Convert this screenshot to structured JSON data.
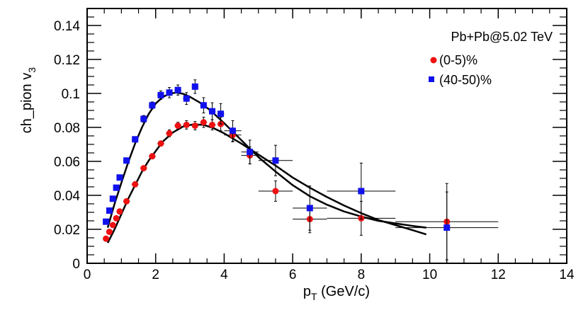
{
  "chart_data": {
    "type": "scatter",
    "title": "",
    "xlabel": "p",
    "xlabel_sub": "T",
    "xlabel_unit": "(GeV/c)",
    "ylabel": "ch_pion v",
    "ylabel_sub": "3",
    "xlim": [
      0,
      14
    ],
    "ylim": [
      0,
      0.15
    ],
    "x_ticks": [
      0,
      2,
      4,
      6,
      8,
      10,
      12,
      14
    ],
    "x_tick_labels": [
      "0",
      "2",
      "4",
      "6",
      "8",
      "10",
      "12",
      "14"
    ],
    "y_ticks": [
      0,
      0.02,
      0.04,
      0.06,
      0.08,
      0.1,
      0.12,
      0.14
    ],
    "y_tick_labels": [
      "0",
      "0.02",
      "0.04",
      "0.06",
      "0.08",
      "0.1",
      "0.12",
      "0.14"
    ],
    "grid": false,
    "legend": {
      "position": "top-right",
      "header": "Pb+Pb@5.02 TeV",
      "entries": [
        {
          "label": "(0-5)%",
          "marker": "circle",
          "color": "#ee1111"
        },
        {
          "label": "(40-50)%",
          "marker": "square",
          "color": "#1111ee"
        }
      ]
    },
    "series": [
      {
        "name": "(0-5)%",
        "marker": "circle",
        "color": "#ee1111",
        "points": [
          {
            "x": 0.55,
            "y": 0.0145,
            "xerr": 0.05,
            "yerr": 0.001
          },
          {
            "x": 0.65,
            "y": 0.0185,
            "xerr": 0.05,
            "yerr": 0.001
          },
          {
            "x": 0.75,
            "y": 0.0225,
            "xerr": 0.05,
            "yerr": 0.001
          },
          {
            "x": 0.85,
            "y": 0.0265,
            "xerr": 0.05,
            "yerr": 0.001
          },
          {
            "x": 0.95,
            "y": 0.0305,
            "xerr": 0.05,
            "yerr": 0.001
          },
          {
            "x": 1.15,
            "y": 0.0365,
            "xerr": 0.1,
            "yerr": 0.001
          },
          {
            "x": 1.4,
            "y": 0.0465,
            "xerr": 0.1,
            "yerr": 0.001
          },
          {
            "x": 1.65,
            "y": 0.056,
            "xerr": 0.1,
            "yerr": 0.001
          },
          {
            "x": 1.9,
            "y": 0.063,
            "xerr": 0.1,
            "yerr": 0.0015
          },
          {
            "x": 2.15,
            "y": 0.0705,
            "xerr": 0.1,
            "yerr": 0.0015
          },
          {
            "x": 2.4,
            "y": 0.0765,
            "xerr": 0.1,
            "yerr": 0.002
          },
          {
            "x": 2.65,
            "y": 0.081,
            "xerr": 0.1,
            "yerr": 0.002
          },
          {
            "x": 2.9,
            "y": 0.0815,
            "xerr": 0.1,
            "yerr": 0.0025
          },
          {
            "x": 3.15,
            "y": 0.081,
            "xerr": 0.1,
            "yerr": 0.0025
          },
          {
            "x": 3.4,
            "y": 0.083,
            "xerr": 0.1,
            "yerr": 0.003
          },
          {
            "x": 3.65,
            "y": 0.0815,
            "xerr": 0.1,
            "yerr": 0.003
          },
          {
            "x": 3.9,
            "y": 0.082,
            "xerr": 0.1,
            "yerr": 0.004
          },
          {
            "x": 4.25,
            "y": 0.0755,
            "xerr": 0.25,
            "yerr": 0.004
          },
          {
            "x": 4.75,
            "y": 0.0635,
            "xerr": 0.25,
            "yerr": 0.005
          },
          {
            "x": 5.5,
            "y": 0.0425,
            "xerr": 0.5,
            "yerr": 0.006
          },
          {
            "x": 6.5,
            "y": 0.026,
            "xerr": 0.5,
            "yerr": 0.008
          },
          {
            "x": 8.0,
            "y": 0.0265,
            "xerr": 1.0,
            "yerr": 0.01
          },
          {
            "x": 10.5,
            "y": 0.0245,
            "xerr": 1.5,
            "yerr": 0.0225
          }
        ]
      },
      {
        "name": "(40-50)%",
        "marker": "square",
        "color": "#1111ee",
        "points": [
          {
            "x": 0.55,
            "y": 0.0245,
            "xerr": 0.05,
            "yerr": 0.001
          },
          {
            "x": 0.65,
            "y": 0.031,
            "xerr": 0.05,
            "yerr": 0.001
          },
          {
            "x": 0.75,
            "y": 0.038,
            "xerr": 0.05,
            "yerr": 0.001
          },
          {
            "x": 0.85,
            "y": 0.0445,
            "xerr": 0.05,
            "yerr": 0.001
          },
          {
            "x": 0.95,
            "y": 0.0505,
            "xerr": 0.05,
            "yerr": 0.0012
          },
          {
            "x": 1.15,
            "y": 0.0605,
            "xerr": 0.1,
            "yerr": 0.0015
          },
          {
            "x": 1.4,
            "y": 0.073,
            "xerr": 0.1,
            "yerr": 0.0015
          },
          {
            "x": 1.65,
            "y": 0.085,
            "xerr": 0.1,
            "yerr": 0.002
          },
          {
            "x": 1.9,
            "y": 0.093,
            "xerr": 0.1,
            "yerr": 0.002
          },
          {
            "x": 2.15,
            "y": 0.099,
            "xerr": 0.1,
            "yerr": 0.0025
          },
          {
            "x": 2.4,
            "y": 0.1005,
            "xerr": 0.1,
            "yerr": 0.003
          },
          {
            "x": 2.65,
            "y": 0.102,
            "xerr": 0.1,
            "yerr": 0.003
          },
          {
            "x": 2.9,
            "y": 0.097,
            "xerr": 0.1,
            "yerr": 0.0035
          },
          {
            "x": 3.15,
            "y": 0.104,
            "xerr": 0.1,
            "yerr": 0.004
          },
          {
            "x": 3.4,
            "y": 0.093,
            "xerr": 0.1,
            "yerr": 0.0045
          },
          {
            "x": 3.65,
            "y": 0.0895,
            "xerr": 0.1,
            "yerr": 0.005
          },
          {
            "x": 3.9,
            "y": 0.088,
            "xerr": 0.1,
            "yerr": 0.006
          },
          {
            "x": 4.25,
            "y": 0.078,
            "xerr": 0.25,
            "yerr": 0.006
          },
          {
            "x": 4.75,
            "y": 0.0655,
            "xerr": 0.25,
            "yerr": 0.007
          },
          {
            "x": 5.5,
            "y": 0.0605,
            "xerr": 0.5,
            "yerr": 0.009
          },
          {
            "x": 6.5,
            "y": 0.0325,
            "xerr": 0.5,
            "yerr": 0.013
          },
          {
            "x": 8.0,
            "y": 0.0425,
            "xerr": 1.0,
            "yerr": 0.0165
          },
          {
            "x": 10.5,
            "y": 0.021,
            "xerr": 1.5,
            "yerr": 0.021
          }
        ]
      }
    ],
    "curves": [
      {
        "name": "(0-5)% model",
        "color": "#000000",
        "points": [
          [
            0.6,
            0.012
          ],
          [
            0.8,
            0.02
          ],
          [
            1.0,
            0.029
          ],
          [
            1.2,
            0.038
          ],
          [
            1.4,
            0.046
          ],
          [
            1.6,
            0.054
          ],
          [
            1.8,
            0.0605
          ],
          [
            2.0,
            0.066
          ],
          [
            2.2,
            0.0715
          ],
          [
            2.5,
            0.077
          ],
          [
            2.8,
            0.0805
          ],
          [
            3.1,
            0.0818
          ],
          [
            3.4,
            0.0815
          ],
          [
            3.7,
            0.0795
          ],
          [
            4.0,
            0.0765
          ],
          [
            4.5,
            0.0705
          ],
          [
            5.0,
            0.064
          ],
          [
            5.5,
            0.0575
          ],
          [
            6.0,
            0.0505
          ],
          [
            6.5,
            0.0445
          ],
          [
            7.0,
            0.039
          ],
          [
            7.5,
            0.034
          ],
          [
            8.0,
            0.0295
          ],
          [
            8.5,
            0.0255
          ],
          [
            9.0,
            0.0225
          ],
          [
            9.5,
            0.0195
          ],
          [
            9.9,
            0.017
          ]
        ]
      },
      {
        "name": "(40-50)% model",
        "color": "#000000",
        "points": [
          [
            0.6,
            0.021
          ],
          [
            0.8,
            0.035
          ],
          [
            1.0,
            0.0475
          ],
          [
            1.2,
            0.0595
          ],
          [
            1.4,
            0.0705
          ],
          [
            1.6,
            0.08
          ],
          [
            1.8,
            0.088
          ],
          [
            2.0,
            0.094
          ],
          [
            2.2,
            0.0978
          ],
          [
            2.4,
            0.0998
          ],
          [
            2.6,
            0.1005
          ],
          [
            2.8,
            0.0998
          ],
          [
            3.0,
            0.098
          ],
          [
            3.3,
            0.0945
          ],
          [
            3.6,
            0.09
          ],
          [
            4.0,
            0.0825
          ],
          [
            4.5,
            0.0725
          ],
          [
            5.0,
            0.0625
          ],
          [
            5.5,
            0.054
          ],
          [
            6.0,
            0.046
          ],
          [
            6.5,
            0.0395
          ],
          [
            7.0,
            0.0345
          ],
          [
            7.5,
            0.0305
          ],
          [
            8.0,
            0.0275
          ],
          [
            8.5,
            0.025
          ],
          [
            9.0,
            0.0235
          ],
          [
            9.5,
            0.022
          ],
          [
            9.9,
            0.021
          ]
        ]
      }
    ]
  }
}
